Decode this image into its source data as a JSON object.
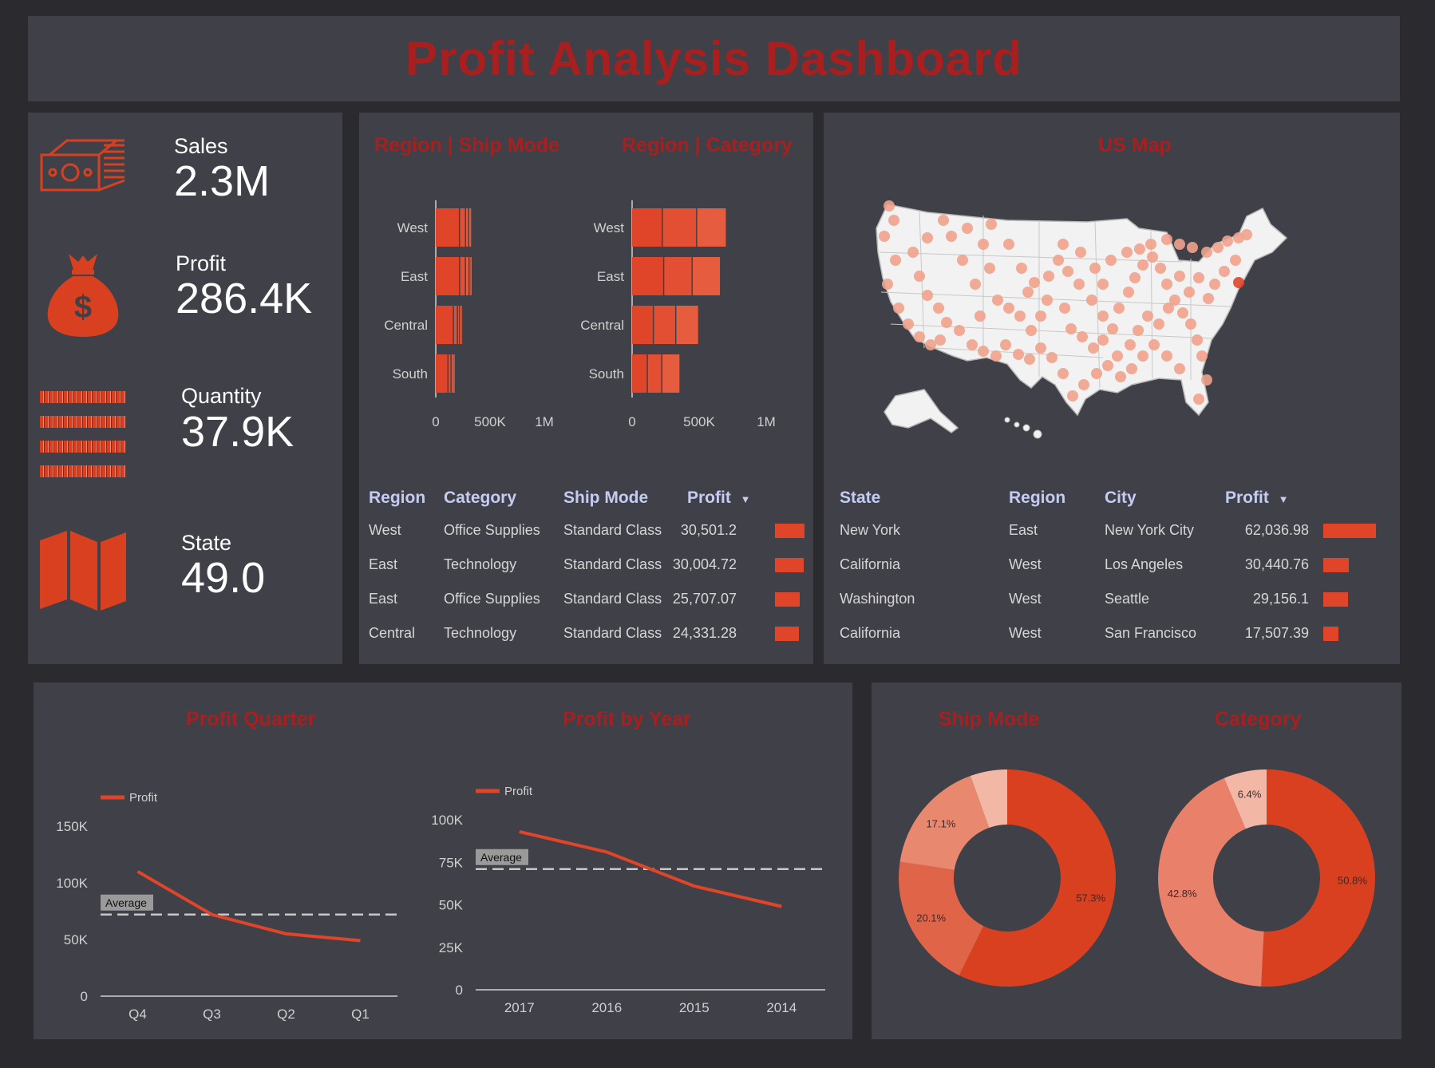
{
  "title": "Profit Analysis Dashboard",
  "kpis": [
    {
      "label": "Sales",
      "value": "2.3M",
      "icon": "money-stack-icon"
    },
    {
      "label": "Profit",
      "value": "286.4K",
      "icon": "money-bag-icon"
    },
    {
      "label": "Quantity",
      "value": "37.9K",
      "icon": "barcode-icon"
    },
    {
      "label": "State",
      "value": "49.0",
      "icon": "folded-map-icon"
    }
  ],
  "money_symbol": "$",
  "region_ship_mode": {
    "title": "Region | Ship Mode",
    "categories": [
      "West",
      "East",
      "Central",
      "South"
    ],
    "segments": [
      [
        224000,
        56000,
        28000,
        10000,
        7000
      ],
      [
        225000,
        54000,
        33000,
        10000,
        7000
      ],
      [
        168000,
        37000,
        16000,
        12000,
        3000
      ],
      [
        118000,
        28000,
        10000,
        10000,
        3000
      ]
    ],
    "ticks": [
      "0",
      "500K",
      "1M"
    ],
    "xmax": 1000000
  },
  "region_category": {
    "title": "Region | Category",
    "categories": [
      "West",
      "East",
      "Central",
      "South"
    ],
    "segments": [
      [
        230000,
        256000,
        222000
      ],
      [
        240000,
        212000,
        212000
      ],
      [
        163000,
        167000,
        171000
      ],
      [
        118000,
        108000,
        136000
      ]
    ],
    "ticks": [
      "0",
      "500K",
      "1M"
    ],
    "xmax": 1000000
  },
  "region_table": {
    "headers": [
      "Region",
      "Category",
      "Ship Mode",
      "Profit"
    ],
    "sort_icon": "sort-desc-icon",
    "rows": [
      {
        "region": "West",
        "category": "Office Supplies",
        "ship_mode": "Standard Class",
        "profit": "30,501.2",
        "value": 30501.2
      },
      {
        "region": "East",
        "category": "Technology",
        "ship_mode": "Standard Class",
        "profit": "30,004.72",
        "value": 30004.72
      },
      {
        "region": "East",
        "category": "Office Supplies",
        "ship_mode": "Standard Class",
        "profit": "25,707.07",
        "value": 25707.07
      },
      {
        "region": "Central",
        "category": "Technology",
        "ship_mode": "Standard Class",
        "profit": "24,331.28",
        "value": 24331.28
      }
    ]
  },
  "us_map": {
    "title": "US Map"
  },
  "state_table": {
    "headers": [
      "State",
      "Region",
      "City",
      "Profit"
    ],
    "rows": [
      {
        "state": "New York",
        "region": "East",
        "city": "New York City",
        "profit": "62,036.98",
        "value": 62036.98
      },
      {
        "state": "California",
        "region": "West",
        "city": "Los Angeles",
        "profit": "30,440.76",
        "value": 30440.76
      },
      {
        "state": "Washington",
        "region": "West",
        "city": "Seattle",
        "profit": "29,156.1",
        "value": 29156.1
      },
      {
        "state": "California",
        "region": "West",
        "city": "San Francisco",
        "profit": "17,507.39",
        "value": 17507.39
      }
    ]
  },
  "chart_data": [
    {
      "type": "line",
      "title": "Profit Quarter",
      "legend": "Profit",
      "categories": [
        "Q4",
        "Q3",
        "Q2",
        "Q1"
      ],
      "values": [
        110000,
        72000,
        55000,
        49000
      ],
      "average": 72000,
      "average_label": "Average",
      "yticks": [
        "0",
        "50K",
        "100K",
        "150K"
      ],
      "ylim": [
        0,
        150000
      ]
    },
    {
      "type": "line",
      "title": "Profit by Year",
      "legend": "Profit",
      "categories": [
        "2017",
        "2016",
        "2015",
        "2014"
      ],
      "values": [
        93000,
        81000,
        61000,
        49000
      ],
      "average": 71000,
      "average_label": "Average",
      "yticks": [
        "0",
        "25K",
        "50K",
        "75K",
        "100K"
      ],
      "ylim": [
        0,
        100000
      ]
    },
    {
      "type": "pie",
      "title": "Ship Mode",
      "slices": [
        {
          "value": 57.3,
          "label": "57.3%",
          "color": "#d9401f"
        },
        {
          "value": 20.1,
          "label": "20.1%",
          "color": "#e06448"
        },
        {
          "value": 17.1,
          "label": "17.1%",
          "color": "#e8896f"
        },
        {
          "value": 5.5,
          "label": "",
          "color": "#f2b8a5"
        }
      ]
    },
    {
      "type": "pie",
      "title": "Category",
      "slices": [
        {
          "value": 50.8,
          "label": "50.8%",
          "color": "#d9401f"
        },
        {
          "value": 42.8,
          "label": "42.8%",
          "color": "#e8806a"
        },
        {
          "value": 6.4,
          "label": "6.4%",
          "color": "#f2b8a5"
        }
      ]
    }
  ],
  "colors": {
    "accent": "#a81f1f",
    "bar": "#e0452a",
    "panel": "#404048",
    "background": "#2b2b2f"
  }
}
